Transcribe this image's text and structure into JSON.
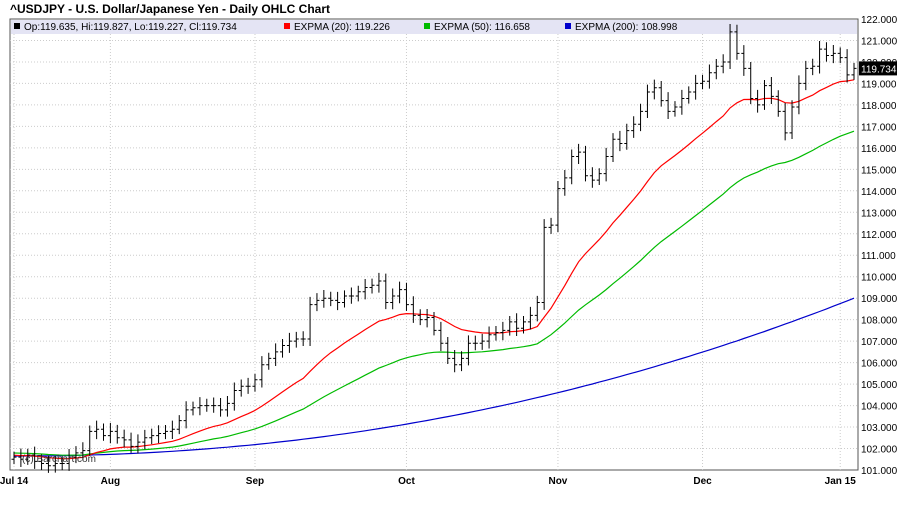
{
  "chart_data": {
    "type": "ohlc",
    "title": "^USDJPY - U.S. Dollar/Japanese Yen - Daily OHLC Chart",
    "legend": [
      {
        "name": "Op:119.635, Hi:119.827, Lo:119.227, Cl:119.734",
        "color": "#000000"
      },
      {
        "name": "EXPMA (20): 119.226",
        "color": "#ff0000"
      },
      {
        "name": "EXPMA (50): 116.658",
        "color": "#00bb00"
      },
      {
        "name": "EXPMA (200): 108.998",
        "color": "#0000cc"
      }
    ],
    "last_price_label": "119.734",
    "watermark": "(c) Barchart.com",
    "x_ticks": [
      "Jul 14",
      "Aug",
      "Sep",
      "Oct",
      "Nov",
      "Dec",
      "Jan 15"
    ],
    "x_tick_day_index": [
      0,
      14,
      35,
      57,
      79,
      100,
      120
    ],
    "y_ticks": [
      "101.000",
      "102.000",
      "103.000",
      "104.000",
      "105.000",
      "106.000",
      "107.000",
      "108.000",
      "109.000",
      "110.000",
      "111.000",
      "112.000",
      "113.000",
      "114.000",
      "115.000",
      "116.000",
      "117.000",
      "118.000",
      "119.000",
      "120.000",
      "121.000",
      "122.000"
    ],
    "ylim": [
      101,
      122
    ],
    "grid": true,
    "legend_position": "top",
    "closes": [
      101.6,
      101.5,
      101.7,
      101.4,
      101.3,
      101.2,
      101.3,
      101.3,
      101.6,
      101.8,
      101.9,
      102.8,
      102.9,
      102.6,
      102.8,
      102.5,
      102.4,
      102.1,
      102.3,
      102.5,
      102.6,
      102.7,
      102.8,
      102.9,
      103.3,
      103.8,
      103.9,
      104.0,
      104.0,
      104.0,
      103.8,
      104.1,
      104.7,
      104.9,
      104.9,
      105.2,
      105.9,
      106.2,
      106.5,
      106.8,
      107.0,
      107.1,
      107.1,
      108.7,
      108.9,
      109.0,
      108.9,
      108.8,
      109.1,
      109.1,
      109.3,
      109.5,
      109.6,
      109.8,
      108.8,
      109.1,
      109.4,
      108.7,
      108.2,
      108.0,
      108.1,
      107.5,
      106.9,
      106.2,
      105.9,
      106.2,
      106.9,
      106.9,
      107.0,
      107.3,
      107.4,
      107.5,
      107.9,
      107.6,
      107.9,
      108.2,
      108.8,
      112.3,
      112.4,
      114.1,
      114.6,
      115.6,
      115.8,
      114.7,
      114.5,
      114.8,
      115.6,
      116.4,
      116.2,
      116.8,
      117.1,
      117.7,
      118.6,
      118.8,
      118.2,
      117.7,
      117.9,
      118.3,
      118.6,
      119.0,
      119.1,
      119.5,
      119.8,
      120.0,
      121.4,
      120.4,
      119.7,
      118.3,
      118.0,
      118.9,
      118.4,
      117.7,
      116.7,
      117.9,
      119.0,
      119.7,
      119.8,
      120.6,
      120.3,
      120.4,
      120.2,
      119.4,
      119.7
    ]
  }
}
